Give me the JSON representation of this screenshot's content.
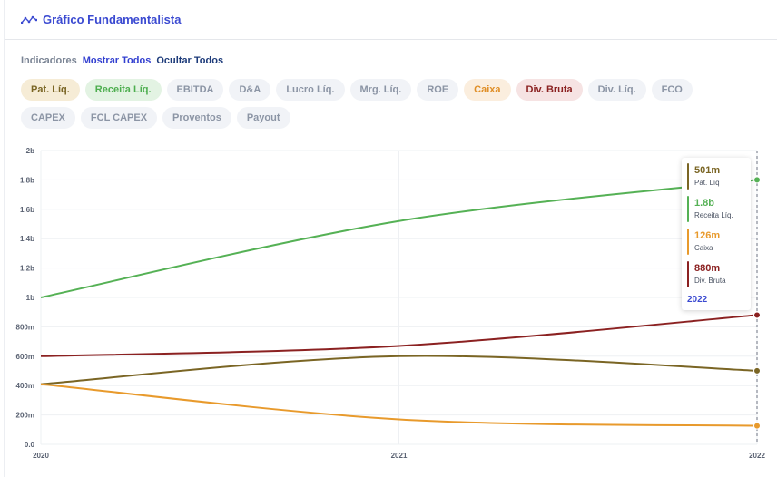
{
  "header": {
    "title": "Gráfico Fundamentalista",
    "icon": "line-chart-icon"
  },
  "indicators": {
    "label": "Indicadores",
    "show_all": "Mostrar Todos",
    "hide_all": "Ocultar Todos"
  },
  "chips": [
    {
      "label": "Pat. Líq.",
      "active": "pat"
    },
    {
      "label": "Receita Líq.",
      "active": "rec"
    },
    {
      "label": "EBITDA",
      "active": ""
    },
    {
      "label": "D&A",
      "active": ""
    },
    {
      "label": "Lucro Líq.",
      "active": ""
    },
    {
      "label": "Mrg. Líq.",
      "active": ""
    },
    {
      "label": "ROE",
      "active": ""
    },
    {
      "label": "Caixa",
      "active": "caixa"
    },
    {
      "label": "Div. Bruta",
      "active": "div"
    },
    {
      "label": "Div. Líq.",
      "active": ""
    },
    {
      "label": "FCO",
      "active": ""
    },
    {
      "label": "CAPEX",
      "active": ""
    },
    {
      "label": "FCL CAPEX",
      "active": ""
    },
    {
      "label": "Proventos",
      "active": ""
    },
    {
      "label": "Payout",
      "active": ""
    }
  ],
  "chart_data": {
    "type": "line",
    "x": [
      "2020",
      "2021",
      "2022"
    ],
    "ylim": [
      0,
      2000000000
    ],
    "yticks": [
      {
        "value": 0,
        "label": "0.0"
      },
      {
        "value": 200000000,
        "label": "200m"
      },
      {
        "value": 400000000,
        "label": "400m"
      },
      {
        "value": 600000000,
        "label": "600m"
      },
      {
        "value": 800000000,
        "label": "800m"
      },
      {
        "value": 1000000000,
        "label": "1b"
      },
      {
        "value": 1200000000,
        "label": "1.2b"
      },
      {
        "value": 1400000000,
        "label": "1.4b"
      },
      {
        "value": 1600000000,
        "label": "1.6b"
      },
      {
        "value": 1800000000,
        "label": "1.8b"
      },
      {
        "value": 2000000000,
        "label": "2b"
      }
    ],
    "grid": true,
    "series": [
      {
        "name": "Pat. Líq.",
        "color": "#7a6524",
        "values": [
          410000000,
          600000000,
          501000000
        ]
      },
      {
        "name": "Receita Líq.",
        "color": "#55b155",
        "values": [
          1000000000,
          1520000000,
          1800000000
        ]
      },
      {
        "name": "Caixa",
        "color": "#e89a2c",
        "values": [
          410000000,
          170000000,
          126000000
        ]
      },
      {
        "name": "Div. Bruta",
        "color": "#8b2121",
        "values": [
          600000000,
          670000000,
          880000000
        ]
      }
    ]
  },
  "tooltip": {
    "year": "2022",
    "items": [
      {
        "value": "501m",
        "name": "Pat. Líq",
        "color": "#7a6524"
      },
      {
        "value": "1.8b",
        "name": "Receita Líq.",
        "color": "#55b155"
      },
      {
        "value": "126m",
        "name": "Caixa",
        "color": "#e89a2c"
      },
      {
        "value": "880m",
        "name": "Div. Bruta",
        "color": "#8b2121"
      }
    ]
  }
}
